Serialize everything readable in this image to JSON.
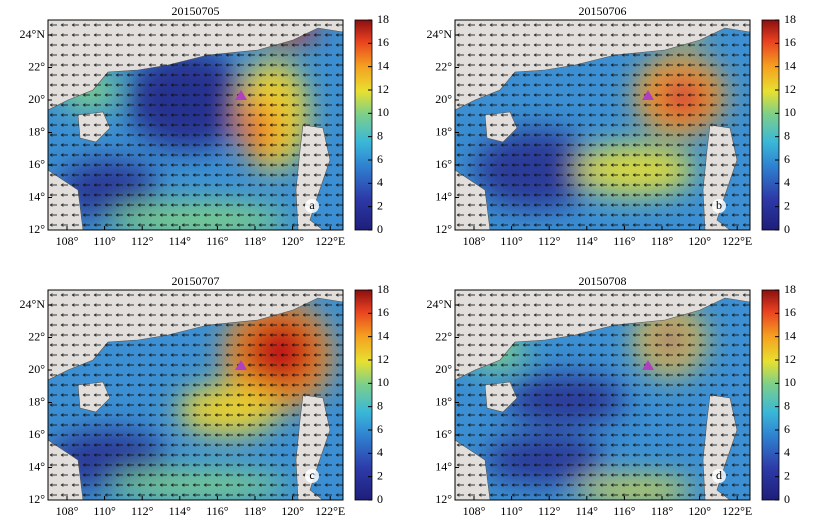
{
  "panels": [
    {
      "title": "20150705",
      "label": "a",
      "lon_ticks": [
        "108°",
        "110°",
        "112°",
        "114°",
        "116°",
        "118°",
        "120°",
        "122°E"
      ],
      "lat_ticks": [
        "12°",
        "14°",
        "16°",
        "18°",
        "20°",
        "22°",
        "24°N"
      ],
      "colorbar_ticks": [
        0,
        2,
        4,
        6,
        8,
        10,
        12,
        14,
        16,
        18
      ]
    },
    {
      "title": "20150706",
      "label": "b",
      "lon_ticks": [
        "108°",
        "110°",
        "112°",
        "114°",
        "116°",
        "118°",
        "120°",
        "122°E"
      ],
      "lat_ticks": [
        "12°",
        "14°",
        "16°",
        "18°",
        "20°",
        "22°",
        "24°N"
      ],
      "colorbar_ticks": [
        0,
        2,
        4,
        6,
        8,
        10,
        12,
        14,
        16,
        18
      ]
    },
    {
      "title": "20150707",
      "label": "c",
      "lon_ticks": [
        "108°",
        "110°",
        "112°",
        "114°",
        "116°",
        "118°",
        "120°",
        "122°E"
      ],
      "lat_ticks": [
        "12°",
        "14°",
        "16°",
        "18°",
        "20°",
        "22°",
        "24°N"
      ],
      "colorbar_ticks": [
        0,
        2,
        4,
        6,
        8,
        10,
        12,
        14,
        16,
        18
      ]
    },
    {
      "title": "20150708",
      "label": "d",
      "lon_ticks": [
        "108°",
        "110°",
        "112°",
        "114°",
        "116°",
        "118°",
        "120°",
        "122°E"
      ],
      "lat_ticks": [
        "12°",
        "14°",
        "16°",
        "18°",
        "20°",
        "22°",
        "24°N"
      ],
      "colorbar_ticks": [
        0,
        2,
        4,
        6,
        8,
        10,
        12,
        14,
        16,
        18
      ]
    }
  ]
}
